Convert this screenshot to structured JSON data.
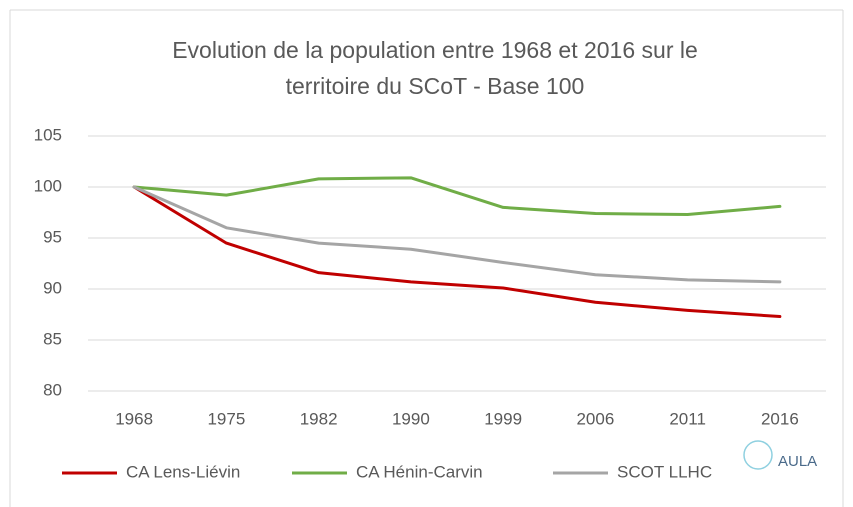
{
  "chart_data": {
    "type": "line",
    "title": [
      "Evolution de la population entre 1968 et 2016 sur le",
      "territoire du SCoT - Base 100"
    ],
    "categories": [
      "1968",
      "1975",
      "1982",
      "1990",
      "1999",
      "2006",
      "2011",
      "2016"
    ],
    "series": [
      {
        "name": "CA Lens-Liévin",
        "color": "#c00000",
        "values": [
          100,
          94.5,
          91.6,
          90.7,
          90.1,
          88.7,
          87.9,
          87.3
        ]
      },
      {
        "name": "CA Hénin-Carvin",
        "color": "#70ad47",
        "values": [
          100,
          99.2,
          100.8,
          100.9,
          98.0,
          97.4,
          97.3,
          98.1
        ]
      },
      {
        "name": "SCOT LLHC",
        "color": "#a5a5a5",
        "values": [
          100,
          96.0,
          94.5,
          93.9,
          92.6,
          91.4,
          90.9,
          90.7
        ]
      }
    ],
    "ylim": [
      80,
      105
    ],
    "yticks": [
      80,
      85,
      90,
      95,
      100,
      105
    ],
    "grid": true,
    "legend": "bottom"
  },
  "logo": "AULA"
}
